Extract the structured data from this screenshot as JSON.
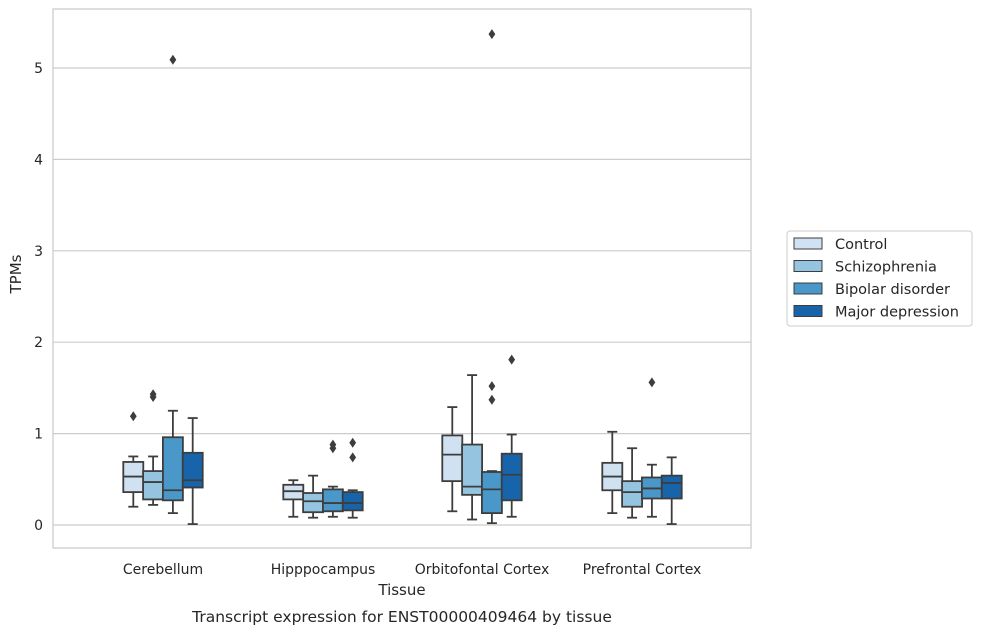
{
  "chart_data": {
    "type": "box",
    "title": "",
    "caption": "Transcript expression for ENST00000409464 by tissue",
    "xlabel": "Tissue",
    "ylabel": "TPMs",
    "ylim": [
      -0.25,
      5.65
    ],
    "yticks": [
      0,
      1,
      2,
      3,
      4,
      5
    ],
    "grid": "horizontal",
    "legend_position": "right",
    "categories": [
      "Cerebellum",
      "Hipppocampus",
      "Orbitofontal Cortex",
      "Prefrontal Cortex"
    ],
    "series": [
      {
        "name": "Control",
        "color": "#d0e1f2",
        "boxes": [
          {
            "whislo": 0.2,
            "q1": 0.36,
            "med": 0.53,
            "q3": 0.69,
            "whishi": 0.75,
            "fliers": [
              1.19
            ]
          },
          {
            "whislo": 0.09,
            "q1": 0.28,
            "med": 0.37,
            "q3": 0.44,
            "whishi": 0.49,
            "fliers": []
          },
          {
            "whislo": 0.15,
            "q1": 0.48,
            "med": 0.77,
            "q3": 0.98,
            "whishi": 1.29,
            "fliers": []
          },
          {
            "whislo": 0.13,
            "q1": 0.38,
            "med": 0.53,
            "q3": 0.68,
            "whishi": 1.02,
            "fliers": []
          }
        ]
      },
      {
        "name": "Schizophrenia",
        "color": "#94c4df",
        "boxes": [
          {
            "whislo": 0.22,
            "q1": 0.28,
            "med": 0.47,
            "q3": 0.59,
            "whishi": 0.75,
            "fliers": [
              1.4,
              1.43
            ]
          },
          {
            "whislo": 0.08,
            "q1": 0.14,
            "med": 0.26,
            "q3": 0.35,
            "whishi": 0.54,
            "fliers": []
          },
          {
            "whislo": 0.06,
            "q1": 0.33,
            "med": 0.42,
            "q3": 0.88,
            "whishi": 1.64,
            "fliers": []
          },
          {
            "whislo": 0.08,
            "q1": 0.2,
            "med": 0.36,
            "q3": 0.48,
            "whishi": 0.84,
            "fliers": []
          }
        ]
      },
      {
        "name": "Bipolar disorder",
        "color": "#4a98c9",
        "boxes": [
          {
            "whislo": 0.13,
            "q1": 0.27,
            "med": 0.38,
            "q3": 0.96,
            "whishi": 1.25,
            "fliers": [
              5.09
            ]
          },
          {
            "whislo": 0.09,
            "q1": 0.15,
            "med": 0.24,
            "q3": 0.39,
            "whishi": 0.42,
            "fliers": [
              0.84,
              0.88
            ]
          },
          {
            "whislo": 0.02,
            "q1": 0.13,
            "med": 0.39,
            "q3": 0.58,
            "whishi": 0.59,
            "fliers": [
              1.37,
              1.52,
              5.37
            ]
          },
          {
            "whislo": 0.09,
            "q1": 0.29,
            "med": 0.4,
            "q3": 0.52,
            "whishi": 0.66,
            "fliers": [
              1.56
            ]
          }
        ]
      },
      {
        "name": "Major depression",
        "color": "#1764ab",
        "boxes": [
          {
            "whislo": 0.01,
            "q1": 0.41,
            "med": 0.49,
            "q3": 0.79,
            "whishi": 1.17,
            "fliers": []
          },
          {
            "whislo": 0.08,
            "q1": 0.16,
            "med": 0.24,
            "q3": 0.36,
            "whishi": 0.38,
            "fliers": [
              0.74,
              0.9
            ]
          },
          {
            "whislo": 0.09,
            "q1": 0.27,
            "med": 0.55,
            "q3": 0.78,
            "whishi": 0.99,
            "fliers": [
              1.81
            ]
          },
          {
            "whislo": 0.01,
            "q1": 0.29,
            "med": 0.46,
            "q3": 0.54,
            "whishi": 0.74,
            "fliers": []
          }
        ]
      }
    ]
  }
}
